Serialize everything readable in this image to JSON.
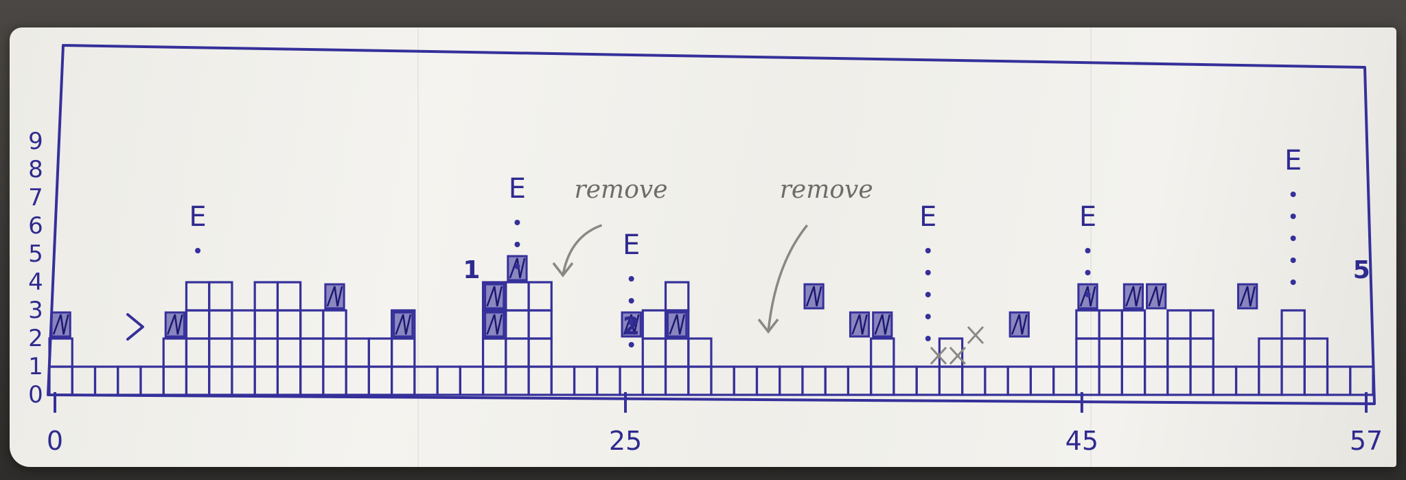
{
  "chart_data": {
    "type": "bar",
    "yaxis": {
      "ticks": [
        "0",
        "1",
        "2",
        "3",
        "4",
        "5",
        "6",
        "7",
        "8",
        "9"
      ],
      "ylim": [
        0,
        9
      ]
    },
    "xaxis": {
      "ticks": [
        {
          "label": "0",
          "x": 0
        },
        {
          "label": "25",
          "x": 25
        },
        {
          "label": "45",
          "x": 45
        },
        {
          "label": "57",
          "x": 57
        }
      ],
      "xlim": [
        0,
        57
      ]
    },
    "columns": [
      2,
      1,
      1,
      1,
      1,
      2,
      4,
      4,
      3,
      4,
      4,
      3,
      3,
      2,
      2,
      3,
      1,
      1,
      1,
      4,
      4,
      4,
      1,
      1,
      1,
      1,
      3,
      4,
      2,
      1,
      1,
      1,
      1,
      1,
      1,
      1,
      2,
      1,
      1,
      2,
      1,
      1,
      1,
      1,
      1,
      3,
      3,
      3,
      2,
      3,
      3,
      1,
      1,
      2,
      3,
      2,
      1,
      1
    ],
    "highlight_cells": [
      [
        0,
        2
      ],
      [
        5,
        2
      ],
      [
        12,
        3
      ],
      [
        15,
        2
      ],
      [
        19,
        2
      ],
      [
        19,
        3
      ],
      [
        20,
        4
      ],
      [
        25,
        2
      ],
      [
        27,
        2
      ],
      [
        33,
        3
      ],
      [
        35,
        2
      ],
      [
        36,
        2
      ],
      [
        42,
        2
      ],
      [
        45,
        3
      ],
      [
        47,
        3
      ],
      [
        48,
        3
      ],
      [
        52,
        3
      ]
    ],
    "event_labels": [
      {
        "text": "E",
        "x": 6,
        "y": 6
      },
      {
        "text": "E",
        "x": 20,
        "y": 7
      },
      {
        "text": "E",
        "x": 25,
        "y": 5
      },
      {
        "text": "E",
        "x": 38,
        "y": 6
      },
      {
        "text": "E",
        "x": 45,
        "y": 6
      },
      {
        "text": "E",
        "x": 54,
        "y": 8
      }
    ],
    "value_labels": [
      {
        "text": "1",
        "x": 18,
        "y": 4
      },
      {
        "text": "2",
        "x": 25,
        "y": 2
      },
      {
        "text": "5",
        "x": 57,
        "y": 4
      }
    ],
    "annotations": [
      {
        "text": "remove",
        "x": 23,
        "y": 7,
        "target_x": 22,
        "target_y": 4
      },
      {
        "text": "remove",
        "x": 32,
        "y": 7,
        "target_x": 31,
        "target_y": 2
      }
    ],
    "strikes": [
      "> near x=3",
      "XX near x=41"
    ]
  },
  "colors": {
    "ink": "#35309a",
    "pencil": "#8a8884",
    "paper": "#f2f1ed"
  }
}
